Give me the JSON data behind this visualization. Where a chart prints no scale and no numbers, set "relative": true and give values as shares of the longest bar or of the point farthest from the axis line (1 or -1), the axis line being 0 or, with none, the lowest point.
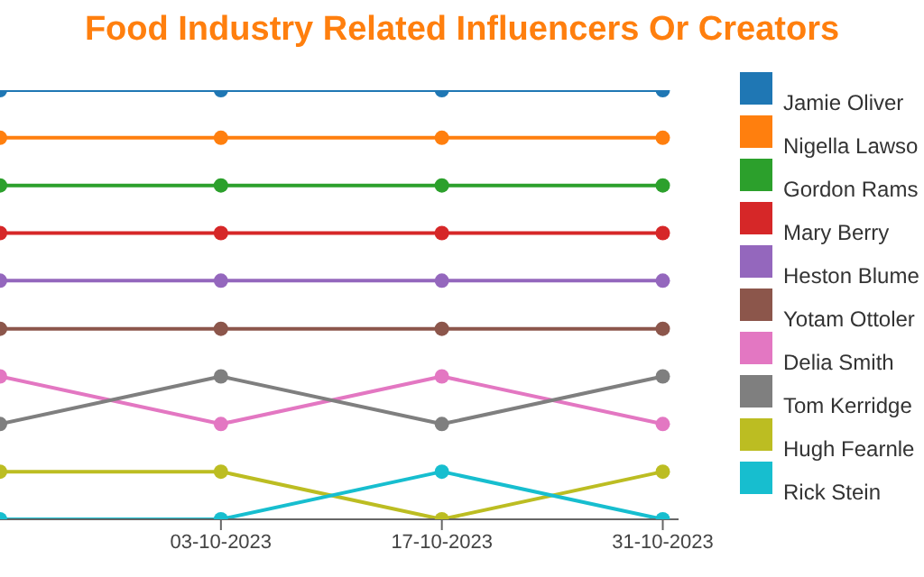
{
  "chart_data": {
    "type": "line",
    "title": "Food Industry Related Influencers Or Creators",
    "relative": true,
    "x": [
      "2023-09-19",
      "2023-10-03",
      "2023-10-17",
      "2023-10-31"
    ],
    "xlim": [
      "2023-09-19",
      "2023-11-01"
    ],
    "xticks": [
      {
        "value": "2023-10-03",
        "label": "03-10-2023"
      },
      {
        "value": "2023-10-17",
        "label": "17-10-2023"
      },
      {
        "value": "2023-10-31",
        "label": "31-10-2023"
      }
    ],
    "series": [
      {
        "name": "Jamie Oliver",
        "color": "#1f77b4",
        "values": [
          1,
          1,
          1,
          1
        ]
      },
      {
        "name": "Nigella Lawso",
        "color": "#ff7f0e",
        "values": [
          0.889,
          0.889,
          0.889,
          0.889
        ]
      },
      {
        "name": "Gordon Rams",
        "color": "#2ca02c",
        "values": [
          0.778,
          0.778,
          0.778,
          0.778
        ]
      },
      {
        "name": "Mary Berry",
        "color": "#d62728",
        "values": [
          0.667,
          0.667,
          0.667,
          0.667
        ]
      },
      {
        "name": "Heston Blume",
        "color": "#9467bd",
        "values": [
          0.556,
          0.556,
          0.556,
          0.556
        ]
      },
      {
        "name": "Yotam Ottoler",
        "color": "#8c564b",
        "values": [
          0.444,
          0.444,
          0.444,
          0.444
        ]
      },
      {
        "name": "Delia Smith",
        "color": "#e377c2",
        "values": [
          0.333,
          0.222,
          0.333,
          0.222
        ]
      },
      {
        "name": "Tom Kerridge",
        "color": "#7f7f7f",
        "values": [
          0.222,
          0.333,
          0.222,
          0.333
        ]
      },
      {
        "name": "Hugh Fearnle",
        "color": "#bcbd22",
        "values": [
          0.111,
          0.111,
          0,
          0.111
        ]
      },
      {
        "name": "Rick Stein",
        "color": "#17becf",
        "values": [
          0,
          0,
          0.111,
          0
        ]
      }
    ],
    "marker": "circle",
    "line_style": "solid",
    "grid": false,
    "legend": "right"
  }
}
